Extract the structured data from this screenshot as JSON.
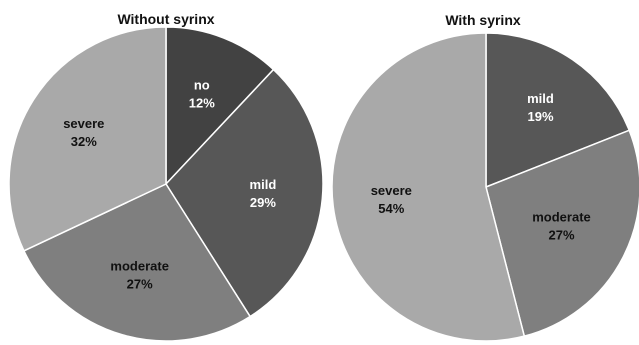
{
  "chart_data": [
    {
      "type": "pie",
      "title": "Without syrinx",
      "slices": [
        {
          "label": "no",
          "value": 12,
          "value_label": "12%",
          "color": "#424242"
        },
        {
          "label": "mild",
          "value": 29,
          "value_label": "29%",
          "color": "#575757"
        },
        {
          "label": "moderate",
          "value": 27,
          "value_label": "27%",
          "color": "#7f7f7f"
        },
        {
          "label": "severe",
          "value": 32,
          "value_label": "32%",
          "color": "#a9a9a9"
        }
      ]
    },
    {
      "type": "pie",
      "title": "With syrinx",
      "slices": [
        {
          "label": "mild",
          "value": 19,
          "value_label": "19%",
          "color": "#575757"
        },
        {
          "label": "moderate",
          "value": 27,
          "value_label": "27%",
          "color": "#7f7f7f"
        },
        {
          "label": "severe",
          "value": 54,
          "value_label": "54%",
          "color": "#a9a9a9"
        }
      ]
    }
  ]
}
